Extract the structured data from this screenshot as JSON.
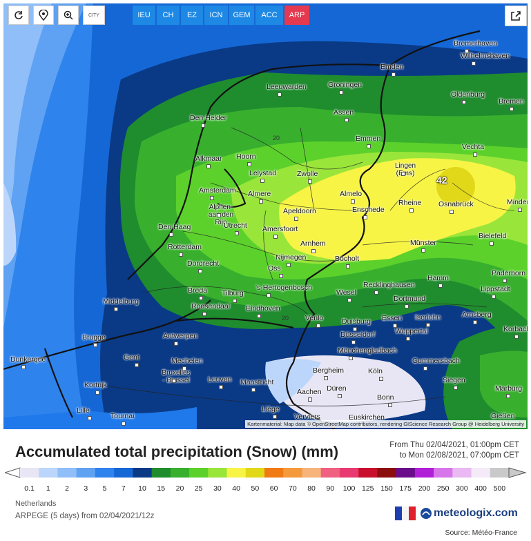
{
  "toolbar": {
    "reload_icon": "reload-icon",
    "locate_icon": "location-pin-icon",
    "zoom_icon": "zoom-in-icon",
    "city_label": "CITY"
  },
  "models": [
    "IEU",
    "CH",
    "EZ",
    "ICN",
    "GEM",
    "ACC",
    "ARP"
  ],
  "active_model": "ARP",
  "colors": {
    "tab_blue": "#1e88e5",
    "tab_active": "#e53950"
  },
  "map": {
    "peak_value": "42",
    "isoline_label": "20",
    "attribution": "Kartenmaterial: Map data © OpenStreetMap contributors, rendering GIScience Research Group @ Heidelberg University",
    "cities": [
      "Bremerhaven",
      "Wilhelmshaven",
      "Emden",
      "Leeuwarden",
      "Groningen",
      "Oldenburg",
      "Bremen",
      "Den Helder",
      "Assen",
      "Emmen",
      "Vechta",
      "Alkmaar",
      "Hoorn",
      "Lelystad",
      "Zwolle",
      "Lingen (Ems)",
      "Amsterdam",
      "Almere",
      "Almelo",
      "Rheine",
      "Osnabrück",
      "Minden",
      "Alphen-aan den Rijn",
      "Apeldoorn",
      "Enschede",
      "Den Haag",
      "Utrecht",
      "Amersfoort",
      "Rotterdam",
      "Arnhem",
      "Münster",
      "Bielefeld",
      "Dordrecht",
      "Nijmegen",
      "Bocholt",
      "Oss",
      "Paderborn",
      "Breda",
      "Tilburg",
      "'s-Hertogenbosch",
      "Wesel",
      "Recklinghausen",
      "Hamm",
      "Lippstadt",
      "Middelburg",
      "Roosendaal",
      "Eindhoven",
      "Dortmund",
      "Venlo",
      "Duisburg",
      "Essen",
      "Iserlohn",
      "Arnsberg",
      "Brugge",
      "Antwerpen",
      "Düsseldorf",
      "Wuppertal",
      "Korbach",
      "Dunkerque",
      "Gent",
      "Mechelen",
      "Mönchengladbach",
      "Gummersbach",
      "Bruxelles - Brussel",
      "Leuven",
      "Maastricht",
      "Bergheim",
      "Köln",
      "Siegen",
      "Kortrijk",
      "Aachen",
      "Düren",
      "Bonn",
      "Marburg",
      "Lille",
      "Tournai",
      "Liège",
      "Verviers",
      "Euskirchen",
      "Gießen"
    ]
  },
  "legend": {
    "title": "Accumulated total precipitation (Snow) (mm)",
    "period_from": "From Thu 02/04/2021, 01:00pm CET",
    "period_to": "to Mon 02/08/2021, 07:00pm CET",
    "labels": [
      "0.1",
      "1",
      "2",
      "3",
      "5",
      "7",
      "10",
      "15",
      "20",
      "25",
      "30",
      "40",
      "50",
      "60",
      "70",
      "80",
      "90",
      "100",
      "125",
      "150",
      "175",
      "200",
      "250",
      "300",
      "400",
      "500"
    ],
    "colors": [
      "#e8e6f5",
      "#bcd6fb",
      "#8fbef8",
      "#5fa1f2",
      "#2f83ec",
      "#1567d6",
      "#0a3a86",
      "#1f8c2e",
      "#38b02e",
      "#5cd12c",
      "#9ae53a",
      "#f7f445",
      "#e2d81a",
      "#f07a14",
      "#f59a3c",
      "#f6b37a",
      "#f06080",
      "#e83a70",
      "#c8102e",
      "#8c0d0d",
      "#6a0d8a",
      "#b21fd8",
      "#d775ea",
      "#eab8f3",
      "#f4eaf8",
      "#c9c9c9"
    ]
  },
  "footer": {
    "region": "Netherlands",
    "model_line": "ARPEGE (5 days) from 02/04/2021/12z",
    "brand": "meteologix.com",
    "source": "Source: Météo-France"
  }
}
